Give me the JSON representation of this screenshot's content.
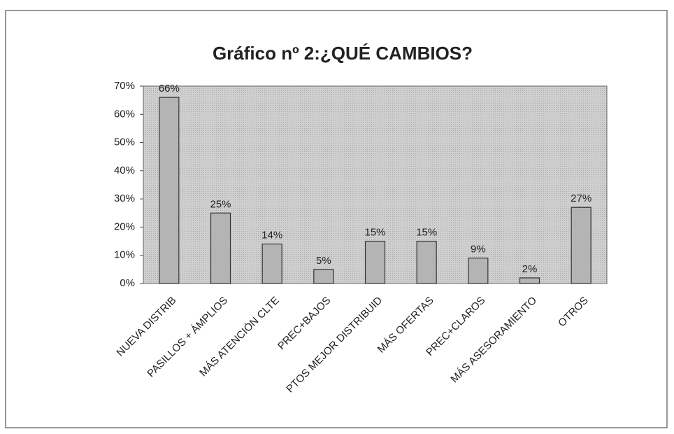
{
  "chart_data": {
    "type": "bar",
    "title": "Gráfico nº 2:¿QUÉ CAMBIOS?",
    "categories": [
      "NUEVA DISTRIB",
      "PASILLOS + ÁMPLIOS",
      "MÁS ATENCIÓN CLTE",
      "PREC+BAJOS",
      "PTOS MEJOR DISTRIBUID",
      "MÁS OFERTAS",
      "PREC+CLAROS",
      "MÁS ASESORAMIENTO",
      "OTROS"
    ],
    "values": [
      66,
      25,
      14,
      5,
      15,
      15,
      9,
      2,
      27
    ],
    "value_labels": [
      "66%",
      "25%",
      "14%",
      "5%",
      "15%",
      "15%",
      "9%",
      "2%",
      "27%"
    ],
    "color": "#b4b4b4",
    "ylim": [
      0,
      70
    ],
    "yticks": [
      {
        "value": 0,
        "label": "0%"
      },
      {
        "value": 10,
        "label": "10%"
      },
      {
        "value": 20,
        "label": "20%"
      },
      {
        "value": 30,
        "label": "30%"
      },
      {
        "value": 40,
        "label": "40%"
      },
      {
        "value": 50,
        "label": "50%"
      },
      {
        "value": 60,
        "label": "60%"
      },
      {
        "value": 70,
        "label": "70%"
      }
    ],
    "grid": false
  }
}
